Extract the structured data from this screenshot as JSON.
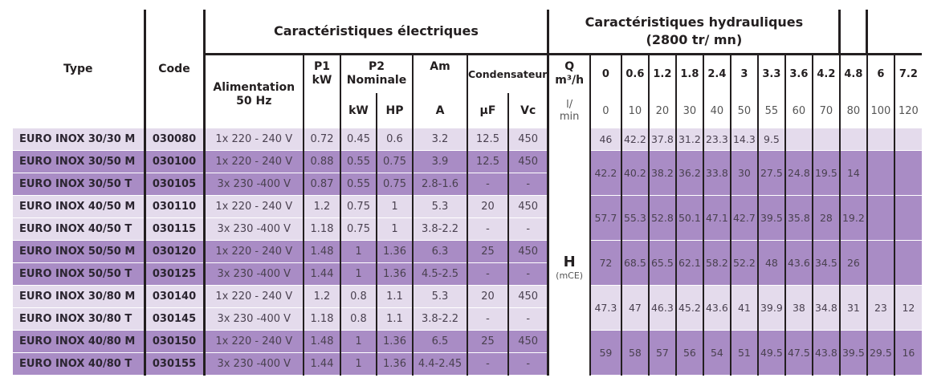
{
  "headers": {
    "type": "Type",
    "code": "Code",
    "electrical_group": "Caractéristiques électriques",
    "hydraulic_group": "Caractéristiques hydrauliques (2800 tr/ mn)",
    "alimentation": "Alimentation 50 Hz",
    "p1": "P1",
    "p1_unit": "kW",
    "p2": "P2 Nominale",
    "p2_kw": "kW",
    "p2_hp": "HP",
    "am": "Am",
    "am_unit": "A",
    "condensateur": "Condensateur",
    "cond_uf": "µF",
    "cond_vc": "Vc",
    "q_label": "Q",
    "q_unit": "m³/h",
    "q_lmin": "l/ min",
    "h_label": "H",
    "h_unit": "(mCE)"
  },
  "flow_m3h": [
    "0",
    "0.6",
    "1.2",
    "1.8",
    "2.4",
    "3",
    "3.3",
    "3.6",
    "4.2",
    "4.8",
    "6",
    "7.2"
  ],
  "flow_lmin": [
    "0",
    "10",
    "20",
    "30",
    "40",
    "50",
    "55",
    "60",
    "70",
    "80",
    "100",
    "120"
  ],
  "rows": [
    {
      "type": "EURO INOX 30/30 M",
      "code": "030080",
      "alim": "1x 220 - 240 V",
      "p1": "0.72",
      "p2kw": "0.45",
      "p2hp": "0.6",
      "am": "3.2",
      "uf": "12.5",
      "vc": "450"
    },
    {
      "type": "EURO INOX 30/50 M",
      "code": "030100",
      "alim": "1x 220 - 240 V",
      "p1": "0.88",
      "p2kw": "0.55",
      "p2hp": "0.75",
      "am": "3.9",
      "uf": "12.5",
      "vc": "450"
    },
    {
      "type": "EURO INOX 30/50 T",
      "code": "030105",
      "alim": "3x 230 -400 V",
      "p1": "0.87",
      "p2kw": "0.55",
      "p2hp": "0.75",
      "am": "2.8-1.6",
      "uf": "-",
      "vc": "-"
    },
    {
      "type": "EURO INOX 40/50 M",
      "code": "030110",
      "alim": "1x 220 - 240 V",
      "p1": "1.2",
      "p2kw": "0.75",
      "p2hp": "1",
      "am": "5.3",
      "uf": "20",
      "vc": "450"
    },
    {
      "type": "EURO INOX 40/50 T",
      "code": "030115",
      "alim": "3x 230 -400 V",
      "p1": "1.18",
      "p2kw": "0.75",
      "p2hp": "1",
      "am": "3.8-2.2",
      "uf": "-",
      "vc": "-"
    },
    {
      "type": "EURO INOX 50/50 M",
      "code": "030120",
      "alim": "1x 220 - 240 V",
      "p1": "1.48",
      "p2kw": "1",
      "p2hp": "1.36",
      "am": "6.3",
      "uf": "25",
      "vc": "450"
    },
    {
      "type": "EURO INOX 50/50 T",
      "code": "030125",
      "alim": "3x 230 -400 V",
      "p1": "1.44",
      "p2kw": "1",
      "p2hp": "1.36",
      "am": "4.5-2.5",
      "uf": "-",
      "vc": "-"
    },
    {
      "type": "EURO INOX 30/80 M",
      "code": "030140",
      "alim": "1x 220 - 240 V",
      "p1": "1.2",
      "p2kw": "0.8",
      "p2hp": "1.1",
      "am": "5.3",
      "uf": "20",
      "vc": "450"
    },
    {
      "type": "EURO INOX 30/80 T",
      "code": "030145",
      "alim": "3x 230 -400 V",
      "p1": "1.18",
      "p2kw": "0.8",
      "p2hp": "1.1",
      "am": "3.8-2.2",
      "uf": "-",
      "vc": "-"
    },
    {
      "type": "EURO INOX 40/80 M",
      "code": "030150",
      "alim": "1x 220 - 240 V",
      "p1": "1.48",
      "p2kw": "1",
      "p2hp": "1.36",
      "am": "6.5",
      "uf": "25",
      "vc": "450"
    },
    {
      "type": "EURO INOX 40/80 T",
      "code": "030155",
      "alim": "3x 230 -400 V",
      "p1": "1.44",
      "p2kw": "1",
      "p2hp": "1.36",
      "am": "4.4-2.45",
      "uf": "-",
      "vc": "-"
    }
  ],
  "hydraulic_groups": [
    {
      "models": "30/30",
      "rows": 1,
      "values": [
        "46",
        "42.2",
        "37.8",
        "31.2",
        "23.3",
        "14.3",
        "9.5",
        "",
        "",
        "",
        "",
        ""
      ]
    },
    {
      "models": "30/50",
      "rows": 2,
      "values": [
        "42.2",
        "40.2",
        "38.2",
        "36.2",
        "33.8",
        "30",
        "27.5",
        "24.8",
        "19.5",
        "14",
        "",
        ""
      ]
    },
    {
      "models": "40/50",
      "rows": 2,
      "values": [
        "57.7",
        "55.3",
        "52.8",
        "50.1",
        "47.1",
        "42.7",
        "39.5",
        "35.8",
        "28",
        "19.2",
        "",
        ""
      ]
    },
    {
      "models": "50/50",
      "rows": 2,
      "values": [
        "72",
        "68.5",
        "65.5",
        "62.1",
        "58.2",
        "52.2",
        "48",
        "43.6",
        "34.5",
        "26",
        "",
        ""
      ]
    },
    {
      "models": "30/80",
      "rows": 2,
      "values": [
        "47.3",
        "47",
        "46.3",
        "45.2",
        "43.6",
        "41",
        "39.9",
        "38",
        "34.8",
        "31",
        "23",
        "12"
      ]
    },
    {
      "models": "40/80",
      "rows": 2,
      "values": [
        "59",
        "58",
        "57",
        "56",
        "54",
        "51",
        "49.5",
        "47.5",
        "43.8",
        "39.5",
        "29.5",
        "16"
      ]
    }
  ],
  "colors": {
    "light_row": "#e4dbec",
    "dark_row": "#a98cc5",
    "rule": "#231f20"
  }
}
